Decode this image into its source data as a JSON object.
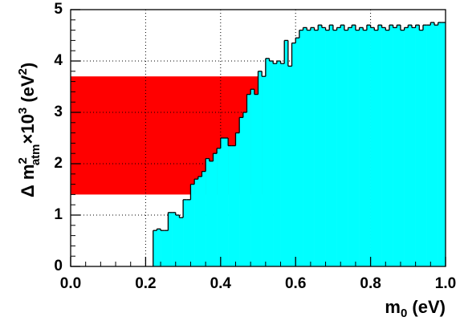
{
  "chart_data": {
    "type": "histogram",
    "bins": [
      0.22,
      0.23,
      0.24,
      0.25,
      0.26,
      0.27,
      0.28,
      0.29,
      0.3,
      0.31,
      0.32,
      0.33,
      0.34,
      0.35,
      0.36,
      0.37,
      0.38,
      0.39,
      0.4,
      0.41,
      0.42,
      0.43,
      0.44,
      0.45,
      0.46,
      0.47,
      0.48,
      0.49,
      0.5,
      0.51,
      0.52,
      0.53,
      0.54,
      0.55,
      0.56,
      0.57,
      0.58,
      0.59,
      0.6,
      0.61,
      0.62,
      0.63,
      0.64,
      0.65,
      0.66,
      0.67,
      0.68,
      0.69,
      0.7,
      0.71,
      0.72,
      0.73,
      0.74,
      0.75,
      0.76,
      0.77,
      0.78,
      0.79,
      0.8,
      0.81,
      0.82,
      0.83,
      0.84,
      0.85,
      0.86,
      0.87,
      0.88,
      0.89,
      0.9,
      0.91,
      0.92,
      0.93,
      0.94,
      0.95,
      0.96,
      0.97,
      0.98,
      0.99,
      1.0
    ],
    "counts": [
      0.7,
      0.73,
      0.7,
      0.7,
      1.05,
      1.05,
      1.0,
      0.95,
      1.3,
      1.3,
      1.6,
      1.7,
      1.75,
      1.85,
      2.1,
      2.05,
      2.2,
      2.3,
      2.5,
      2.5,
      2.35,
      2.35,
      2.6,
      2.9,
      3.0,
      3.35,
      3.45,
      3.35,
      3.8,
      3.7,
      4.05,
      4.0,
      3.95,
      4.0,
      3.95,
      4.4,
      3.9,
      4.35,
      4.45,
      4.6,
      4.65,
      4.6,
      4.65,
      4.6,
      4.7,
      4.65,
      4.6,
      4.7,
      4.6,
      4.65,
      4.7,
      4.6,
      4.65,
      4.7,
      4.6,
      4.65,
      4.6,
      4.7,
      4.65,
      4.6,
      4.7,
      4.65,
      4.6,
      4.7,
      4.65,
      4.7,
      4.6,
      4.65,
      4.7,
      4.65,
      4.7,
      4.6,
      4.7,
      4.7,
      4.75,
      4.7,
      4.75,
      4.75
    ],
    "color": "#00ffff",
    "band": {
      "x": [
        0,
        0.52
      ],
      "y": [
        1.4,
        3.7
      ],
      "color": "#ff0000"
    },
    "xlim": [
      0,
      1.0
    ],
    "ylim": [
      0,
      5
    ],
    "xticks": [
      {
        "value": 0,
        "label": "0.0"
      },
      0.2,
      0.4,
      0.6,
      0.8,
      {
        "value": 1.0,
        "label": "1.0"
      }
    ],
    "yticks": [
      0,
      1,
      2,
      3,
      4,
      5
    ],
    "grid": true,
    "xlabel": [
      "m",
      "0",
      " (eV)"
    ],
    "ylabel": [
      "Δ m",
      "2",
      "atm",
      "×10",
      "3",
      " (eV",
      "2",
      ")"
    ]
  }
}
